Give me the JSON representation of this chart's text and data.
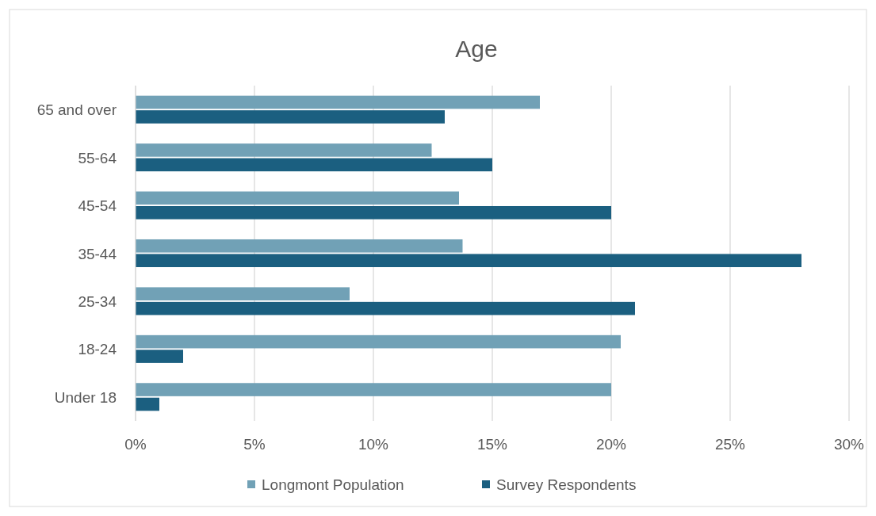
{
  "chart_data": {
    "type": "bar",
    "title": "Age",
    "orientation": "horizontal",
    "categories": [
      "65 and over",
      "55-64",
      "45-54",
      "35-44",
      "25-34",
      "18-24",
      "Under 18"
    ],
    "series": [
      {
        "name": "Longmont Population",
        "color": "#71a1b6",
        "values": [
          17,
          12.45,
          13.6,
          13.75,
          9,
          20.4,
          20
        ]
      },
      {
        "name": "Survey Respondents",
        "color": "#1b5f80",
        "values": [
          13,
          15,
          20,
          28,
          21,
          2,
          1
        ]
      }
    ],
    "xlim": [
      0,
      30
    ],
    "xticks": [
      {
        "value": 0,
        "label": "0%"
      },
      {
        "value": 5,
        "label": "5%"
      },
      {
        "value": 10,
        "label": "10%"
      },
      {
        "value": 15,
        "label": "15%"
      },
      {
        "value": 20,
        "label": "20%"
      },
      {
        "value": 25,
        "label": "25%"
      },
      {
        "value": 30,
        "label": "30%"
      }
    ],
    "grid": "x",
    "legend": "bottom"
  }
}
